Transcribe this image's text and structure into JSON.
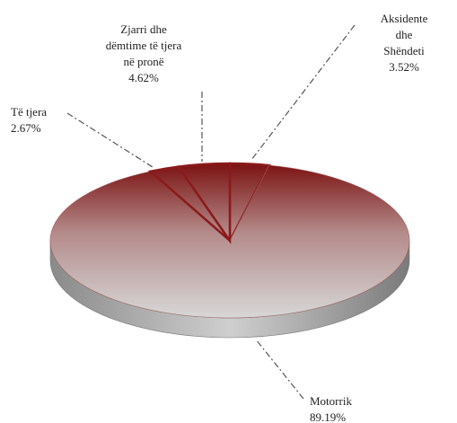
{
  "chart_data": {
    "type": "pie3d",
    "categories": [
      "Aksidente dhe\nShëndeti",
      "Motorrik",
      "Të tjera",
      "Zjarri dhe\ndëmtime të tjera\nnë pronë"
    ],
    "values": [
      3.52,
      89.19,
      2.67,
      4.62
    ],
    "value_labels": [
      "3.52%",
      "89.19%",
      "2.67%",
      "4.62%"
    ],
    "color": "#8b1a1a"
  }
}
